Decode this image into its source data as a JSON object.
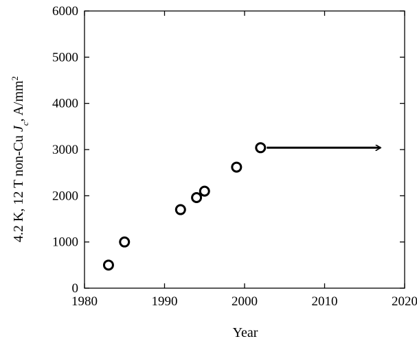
{
  "chart_data": {
    "type": "scatter",
    "xlabel": "Year",
    "ylabel": {
      "prefix": "4.2 K, 12 T non-Cu ",
      "J": "J",
      "subscript": "c",
      "units": ", A/mm",
      "superscript": "2"
    },
    "xlim": [
      1980,
      2020
    ],
    "ylim": [
      0,
      6000
    ],
    "x_ticks": [
      1980,
      1990,
      2000,
      2010,
      2020
    ],
    "y_ticks": [
      0,
      1000,
      2000,
      3000,
      4000,
      5000,
      6000
    ],
    "x_tick_labels": [
      "1980",
      "1990",
      "2000",
      "2010",
      "2020"
    ],
    "y_tick_labels": [
      "0",
      "1000",
      "2000",
      "3000",
      "4000",
      "5000",
      "6000"
    ],
    "grid": false,
    "series": [
      {
        "marker": "open-circle",
        "color": "#000000",
        "points": [
          {
            "x": 1983,
            "y": 500
          },
          {
            "x": 1985,
            "y": 1000
          },
          {
            "x": 1992,
            "y": 1700
          },
          {
            "x": 1994,
            "y": 1960
          },
          {
            "x": 1995,
            "y": 2100
          },
          {
            "x": 1999,
            "y": 2620
          },
          {
            "x": 2002,
            "y": 3040
          }
        ]
      }
    ],
    "annotations": [
      {
        "type": "arrow",
        "from": {
          "x": 2002,
          "y": 3040
        },
        "to": {
          "x": 2017,
          "y": 3040
        },
        "color": "#000000"
      }
    ]
  }
}
